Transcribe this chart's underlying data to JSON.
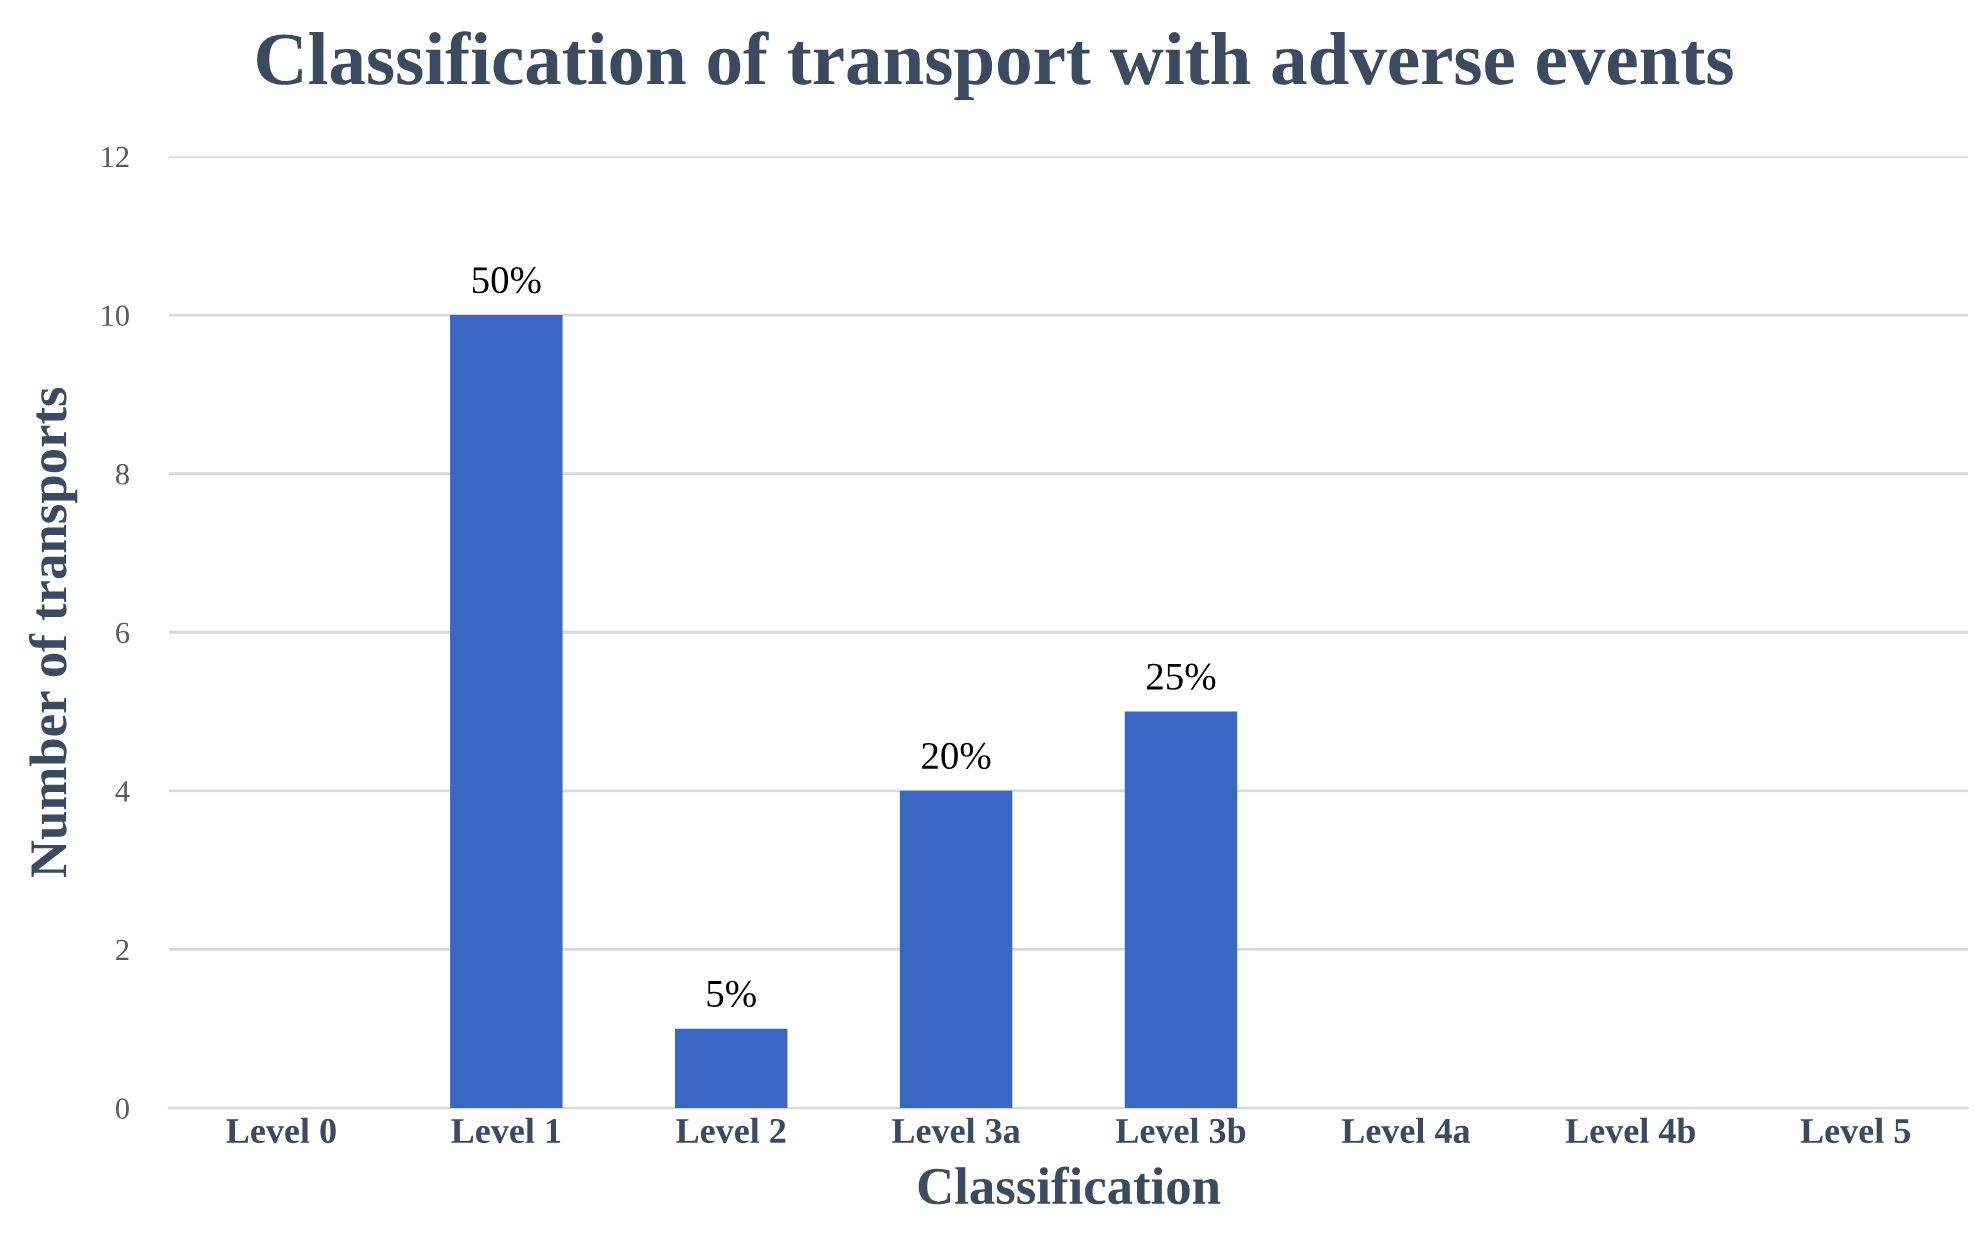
{
  "chart_data": {
    "type": "bar",
    "title": "Classification of transport with adverse events",
    "xlabel": "Classification",
    "ylabel": "Number of transports",
    "categories": [
      "Level 0",
      "Level 1",
      "Level 2",
      "Level 3a",
      "Level 3b",
      "Level 4a",
      "Level 4b",
      "Level 5"
    ],
    "values": [
      0,
      10,
      1,
      4,
      5,
      0,
      0,
      0
    ],
    "annotations": [
      {
        "text": "50%",
        "x": "Level 1",
        "y": 10
      },
      {
        "text": "5%",
        "x": "Level 2",
        "y": 1
      },
      {
        "text": "20%",
        "x": "Level 3a",
        "y": 4
      },
      {
        "text": "25%",
        "x": "Level 3b",
        "y": 5
      }
    ],
    "color": "#3a66c4",
    "ylim": [
      0,
      12
    ],
    "yticks": [
      0,
      2,
      4,
      6,
      8,
      10,
      12
    ],
    "grid": "y"
  }
}
